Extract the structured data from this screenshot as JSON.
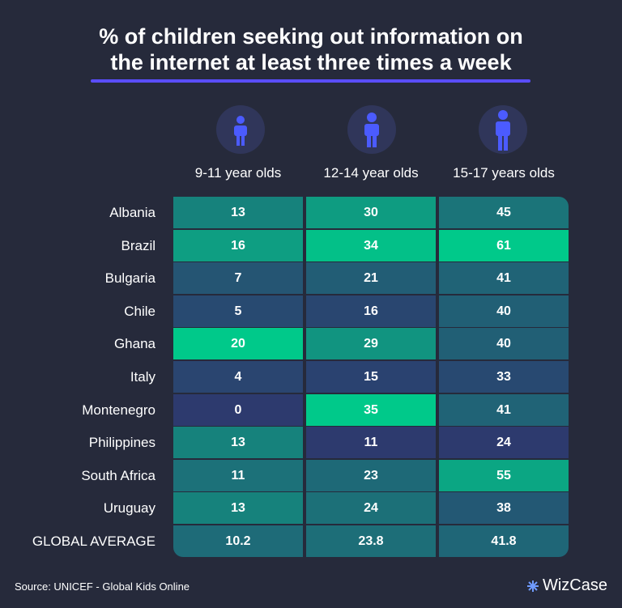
{
  "header": {
    "title_lines": [
      "% of children seeking out information on",
      "the internet at least three times a week"
    ]
  },
  "table": {
    "columns": [
      "9-11 year olds",
      "12-14 year olds",
      "15-17 years olds"
    ],
    "rows": [
      {
        "label": "Albania",
        "values": [
          13,
          30,
          45
        ]
      },
      {
        "label": "Brazil",
        "values": [
          16,
          34,
          61
        ]
      },
      {
        "label": "Bulgaria",
        "values": [
          7,
          21,
          41
        ]
      },
      {
        "label": "Chile",
        "values": [
          5,
          16,
          40
        ]
      },
      {
        "label": "Ghana",
        "values": [
          20,
          29,
          40
        ]
      },
      {
        "label": "Italy",
        "values": [
          4,
          15,
          33
        ]
      },
      {
        "label": "Montenegro",
        "values": [
          0,
          35,
          41
        ]
      },
      {
        "label": "Philippines",
        "values": [
          13,
          11,
          24
        ]
      },
      {
        "label": "South Africa",
        "values": [
          11,
          23,
          55
        ]
      },
      {
        "label": "Uruguay",
        "values": [
          13,
          24,
          38
        ]
      },
      {
        "label": "GLOBAL AVERAGE",
        "values": [
          10.2,
          23.8,
          41.8
        ]
      }
    ]
  },
  "footer": {
    "source": "Source: UNICEF - Global Kids Online",
    "logo": "WizCase"
  }
}
